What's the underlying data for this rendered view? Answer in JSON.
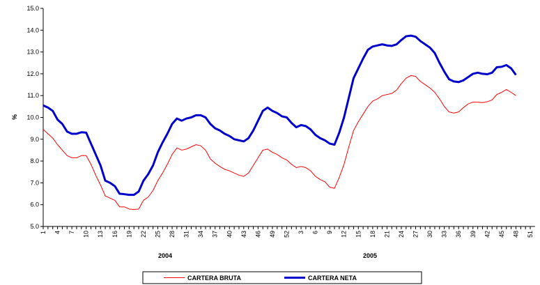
{
  "chart_data": {
    "type": "line",
    "y_label": "%",
    "year_labels": [
      "2004",
      "2005"
    ],
    "categories": [
      "1",
      null,
      null,
      "4",
      null,
      null,
      "7",
      null,
      null,
      "10",
      null,
      null,
      "13",
      null,
      null,
      "16",
      null,
      null,
      "19",
      null,
      null,
      "22",
      null,
      null,
      "25",
      null,
      null,
      "28",
      null,
      null,
      "31",
      null,
      null,
      "34",
      null,
      null,
      "37",
      null,
      null,
      "40",
      null,
      null,
      "43",
      null,
      null,
      "46",
      null,
      null,
      "49",
      null,
      null,
      "52",
      null,
      null,
      "3",
      null,
      null,
      "6",
      null,
      null,
      "9",
      null,
      null,
      "12",
      null,
      null,
      "15",
      null,
      null,
      "18",
      null,
      null,
      "21",
      null,
      null,
      "24",
      null,
      null,
      "27",
      null,
      null,
      "30",
      null,
      null,
      "33",
      null,
      null,
      "36",
      null,
      null,
      "39",
      null,
      null,
      "42",
      null,
      null,
      "45",
      null,
      null,
      "48",
      null,
      null,
      "51"
    ],
    "series": [
      {
        "name": "CARTERA BRUTA",
        "color": "#ff0000",
        "width": 1,
        "values": [
          9.45,
          9.25,
          9.05,
          8.75,
          8.5,
          8.25,
          8.15,
          8.15,
          8.25,
          8.25,
          7.85,
          7.35,
          6.9,
          6.4,
          6.3,
          6.2,
          5.9,
          5.9,
          5.8,
          5.78,
          5.8,
          6.2,
          6.35,
          6.65,
          7.1,
          7.45,
          7.85,
          8.3,
          8.6,
          8.5,
          8.55,
          8.65,
          8.75,
          8.7,
          8.5,
          8.1,
          7.9,
          7.75,
          7.62,
          7.55,
          7.45,
          7.35,
          7.3,
          7.45,
          7.8,
          8.15,
          8.5,
          8.55,
          8.4,
          8.3,
          8.15,
          8.05,
          7.85,
          7.7,
          7.75,
          7.7,
          7.55,
          7.3,
          7.15,
          7.05,
          6.8,
          6.75,
          7.25,
          7.85,
          8.65,
          9.4,
          9.8,
          10.15,
          10.5,
          10.75,
          10.85,
          11.0,
          11.05,
          11.1,
          11.25,
          11.55,
          11.8,
          11.92,
          11.88,
          11.65,
          11.5,
          11.35,
          11.15,
          10.85,
          10.5,
          10.25,
          10.2,
          10.25,
          10.45,
          10.62,
          10.7,
          10.7,
          10.68,
          10.72,
          10.8,
          11.05,
          11.15,
          11.28,
          11.15,
          11.0,
          null,
          null,
          null
        ]
      },
      {
        "name": "CARTERA NETA",
        "color": "#0000cc",
        "width": 3,
        "values": [
          10.55,
          10.45,
          10.3,
          9.9,
          9.7,
          9.35,
          9.25,
          9.25,
          9.32,
          9.3,
          8.8,
          8.3,
          7.8,
          7.1,
          7.0,
          6.85,
          6.5,
          6.48,
          6.45,
          6.45,
          6.6,
          7.1,
          7.4,
          7.8,
          8.4,
          8.85,
          9.25,
          9.7,
          9.95,
          9.85,
          9.95,
          10.0,
          10.1,
          10.1,
          10.0,
          9.7,
          9.5,
          9.4,
          9.25,
          9.15,
          9.0,
          8.95,
          8.9,
          9.05,
          9.4,
          9.85,
          10.3,
          10.45,
          10.3,
          10.2,
          10.05,
          10.0,
          9.75,
          9.55,
          9.65,
          9.6,
          9.45,
          9.2,
          9.05,
          8.95,
          8.8,
          8.75,
          9.3,
          10.0,
          10.9,
          11.8,
          12.25,
          12.7,
          13.1,
          13.25,
          13.3,
          13.35,
          13.3,
          13.28,
          13.35,
          13.55,
          13.72,
          13.75,
          13.7,
          13.5,
          13.35,
          13.2,
          12.95,
          12.5,
          12.1,
          11.75,
          11.65,
          11.62,
          11.7,
          11.85,
          12.0,
          12.05,
          12.0,
          11.98,
          12.05,
          12.3,
          12.32,
          12.4,
          12.25,
          11.95,
          null,
          null,
          null
        ]
      }
    ],
    "ylim": [
      5,
      15
    ],
    "yticks": [
      {
        "value": 5,
        "label": "5.0"
      },
      {
        "value": 6,
        "label": "6.0"
      },
      {
        "value": 7,
        "label": "7.0"
      },
      {
        "value": 8,
        "label": "8.0"
      },
      {
        "value": 9,
        "label": "9.0"
      },
      {
        "value": 10,
        "label": "10.0"
      },
      {
        "value": 11,
        "label": "11.0"
      },
      {
        "value": 12,
        "label": "12.0"
      },
      {
        "value": 13,
        "label": "13.0"
      },
      {
        "value": 14,
        "label": "14.0"
      },
      {
        "value": 15,
        "label": "15.0"
      }
    ],
    "grid": false
  }
}
